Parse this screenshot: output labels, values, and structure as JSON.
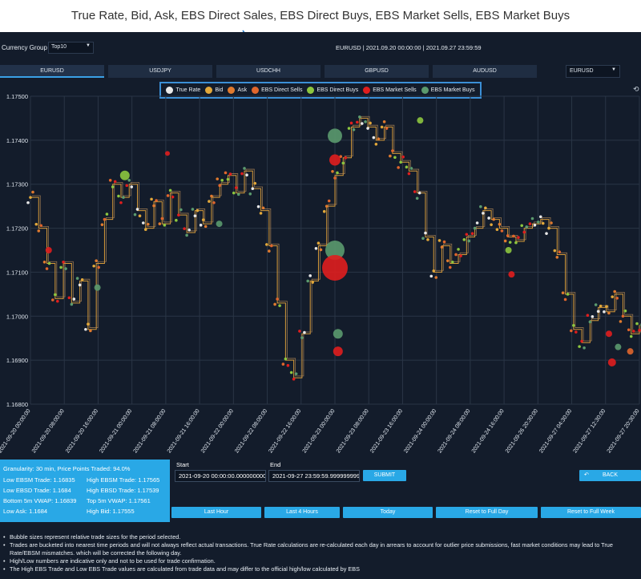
{
  "annotation": {
    "title": "True Rate, Bid, Ask, EBS Direct Sales, EBS Direct Buys, EBS Market Sells, EBS Market Buys"
  },
  "topbar": {
    "currency_group_label": "Currency Group",
    "currency_group_value": "Top10",
    "range_title": "EURUSD | 2021.09.20 00:00:00 | 2021.09.27 23:59:59"
  },
  "tabs": [
    {
      "label": "EURUSD",
      "active": true
    },
    {
      "label": "USDJPY"
    },
    {
      "label": "USDCHH"
    },
    {
      "label": "GBPUSD"
    },
    {
      "label": "AUDUSD"
    }
  ],
  "pair_select": {
    "value": "EURUSD"
  },
  "legend": [
    {
      "label": "True Rate",
      "color": "#e8e8e8"
    },
    {
      "label": "Bid",
      "color": "#e2a83a"
    },
    {
      "label": "Ask",
      "color": "#e07a2e"
    },
    {
      "label": "EBS Direct Sells",
      "color": "#e0662c"
    },
    {
      "label": "EBS Direct Buys",
      "color": "#8dc63f"
    },
    {
      "label": "EBS Market Sells",
      "color": "#e01e1e"
    },
    {
      "label": "EBS Market Buys",
      "color": "#5b9a6e"
    }
  ],
  "chart_data": {
    "type": "scatter",
    "ylim": [
      1.168,
      1.175
    ],
    "yticks": [
      "1.16800",
      "1.16900",
      "1.17000",
      "1.17100",
      "1.17200",
      "1.17300",
      "1.17400",
      "1.17500"
    ],
    "xticks": [
      "2021-09-20 00:00:00",
      "2021-09-20 08:00:00",
      "2021-09-20 16:00:00",
      "2021-09-21 00:00:00",
      "2021-09-21 08:00:00",
      "2021-09-21 16:00:00",
      "2021-09-22 00:00:00",
      "2021-09-22 08:00:00",
      "2021-09-22 16:00:00",
      "2021-09-23 00:00:00",
      "2021-09-23 08:00:00",
      "2021-09-23 16:00:00",
      "2021-09-24 00:00:00",
      "2021-09-24 08:00:00",
      "2021-09-24 16:00:00",
      "2021-09-26 20:30:00",
      "2021-09-27 04:30:00",
      "2021-09-27 12:30:00",
      "2021-09-27 20:30:00"
    ],
    "true_rate": [
      1.1727,
      1.172,
      1.1712,
      1.1704,
      1.1712,
      1.1703,
      1.1708,
      1.1697,
      1.1712,
      1.1722,
      1.173,
      1.1727,
      1.173,
      1.1724,
      1.172,
      1.1726,
      1.1721,
      1.1728,
      1.1723,
      1.1719,
      1.1724,
      1.1721,
      1.1727,
      1.173,
      1.1732,
      1.1728,
      1.1733,
      1.1729,
      1.1724,
      1.1716,
      1.1703,
      1.169,
      1.1686,
      1.1696,
      1.1708,
      1.1716,
      1.1725,
      1.1732,
      1.1736,
      1.1743,
      1.1745,
      1.1743,
      1.174,
      1.1743,
      1.1737,
      1.1735,
      1.1733,
      1.1728,
      1.1718,
      1.171,
      1.1716,
      1.1712,
      1.1714,
      1.1718,
      1.172,
      1.1724,
      1.1722,
      1.172,
      1.1718,
      1.1717,
      1.172,
      1.1721,
      1.1722,
      1.172,
      1.1714,
      1.1705,
      1.1697,
      1.1694,
      1.1699,
      1.1702,
      1.1701,
      1.1705,
      1.17,
      1.1696,
      1.1698
    ],
    "markers": [
      {
        "x": 6,
        "y": 1.1715,
        "s": 4,
        "c": 5
      },
      {
        "x": 22,
        "y": 1.17065,
        "s": 4,
        "c": 6
      },
      {
        "x": 31,
        "y": 1.1732,
        "s": 6,
        "c": 4
      },
      {
        "x": 45,
        "y": 1.1737,
        "s": 3,
        "c": 5
      },
      {
        "x": 62,
        "y": 1.1721,
        "s": 4,
        "c": 6
      },
      {
        "x": 100,
        "y": 1.1741,
        "s": 9,
        "c": 6
      },
      {
        "x": 100,
        "y": 1.17355,
        "s": 7,
        "c": 5
      },
      {
        "x": 100,
        "y": 1.1715,
        "s": 12,
        "c": 6
      },
      {
        "x": 100,
        "y": 1.1711,
        "s": 16,
        "c": 5
      },
      {
        "x": 101,
        "y": 1.1696,
        "s": 6,
        "c": 6
      },
      {
        "x": 101,
        "y": 1.1692,
        "s": 6,
        "c": 5
      },
      {
        "x": 128,
        "y": 1.17445,
        "s": 4,
        "c": 4
      },
      {
        "x": 157,
        "y": 1.1715,
        "s": 4,
        "c": 4
      },
      {
        "x": 158,
        "y": 1.17095,
        "s": 4,
        "c": 5
      },
      {
        "x": 190,
        "y": 1.1696,
        "s": 4,
        "c": 5
      },
      {
        "x": 191,
        "y": 1.16895,
        "s": 5,
        "c": 5
      },
      {
        "x": 193,
        "y": 1.1693,
        "s": 4,
        "c": 6
      },
      {
        "x": 197,
        "y": 1.1692,
        "s": 4,
        "c": 3
      }
    ]
  },
  "info_panel": {
    "title": "Granularity: 30 min, Price Points Traded: 94.0%",
    "low_ebsm_trade": "Low EBSM Trade: 1.16835",
    "high_ebsm_trade": "High EBSM Trade: 1.17565",
    "low_ebsd_trade": "Low EBSD Trade: 1.1684",
    "high_ebsd_trade": "High EBSD Trade: 1.17539",
    "bottom_vwap": "Bottom 5m VWAP: 1.16839",
    "top_vwap": "Top 5m VWAP: 1.17561",
    "low_ask": "Low Ask: 1.1684",
    "high_bid": "High Bid: 1.17555"
  },
  "dates": {
    "start_label": "Start",
    "end_label": "End",
    "start_value": "2021-09-20 00:00:00.000000000",
    "end_value": "2021-09-27 23:59:59.999999999",
    "submit_label": "SUBMIT"
  },
  "buttons": {
    "back": "BACK",
    "last_hour": "Last Hour",
    "last_4_hours": "Last 4 Hours",
    "today": "Today",
    "reset_full_day": "Reset to Full Day",
    "reset_full_week": "Reset to Full Week"
  },
  "notes": [
    "Bubble sizes represent relative trade sizes for the period selected.",
    "Trades are bucketed into nearest time periods and will not always reflect actual transactions. True Rate calculations are re-calculated each day in arrears to account for outlier price submissions, fast market conditions may lead to True Rate/EBSM mismatches. which will be corrected the following day.",
    "High/Low numbers are indicative only and not to be used for trade confirmation.",
    "The High EBS Trade and Low EBS Trade values are calculated from trade data and may differ to the official high/low calculated by EBS"
  ]
}
